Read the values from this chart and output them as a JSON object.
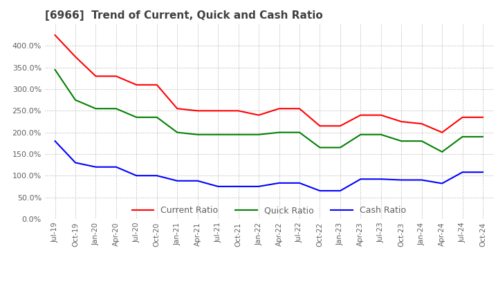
{
  "title": "[6966]  Trend of Current, Quick and Cash Ratio",
  "x_labels": [
    "Jul-19",
    "Oct-19",
    "Jan-20",
    "Apr-20",
    "Jul-20",
    "Oct-20",
    "Jan-21",
    "Apr-21",
    "Jul-21",
    "Oct-21",
    "Jan-22",
    "Apr-22",
    "Jul-22",
    "Oct-22",
    "Jan-23",
    "Apr-23",
    "Jul-23",
    "Oct-23",
    "Jan-24",
    "Apr-24",
    "Jul-24",
    "Oct-24"
  ],
  "current_ratio": [
    425,
    375,
    330,
    330,
    310,
    310,
    255,
    250,
    250,
    250,
    240,
    255,
    255,
    215,
    215,
    240,
    240,
    225,
    220,
    200,
    235,
    235
  ],
  "quick_ratio": [
    345,
    275,
    255,
    255,
    235,
    235,
    200,
    195,
    195,
    195,
    195,
    200,
    200,
    165,
    165,
    195,
    195,
    180,
    180,
    155,
    190,
    190
  ],
  "cash_ratio": [
    180,
    130,
    120,
    120,
    100,
    100,
    88,
    88,
    75,
    75,
    75,
    83,
    83,
    65,
    65,
    92,
    92,
    90,
    90,
    82,
    108,
    108
  ],
  "ylim": [
    0,
    450
  ],
  "yticks": [
    0,
    50,
    100,
    150,
    200,
    250,
    300,
    350,
    400
  ],
  "current_color": "#ff0000",
  "quick_color": "#008000",
  "cash_color": "#0000ff",
  "bg_color": "#ffffff",
  "grid_color": "#aaaaaa",
  "title_color": "#404040",
  "label_color": "#606060",
  "figsize": [
    7.2,
    4.4
  ],
  "dpi": 100
}
